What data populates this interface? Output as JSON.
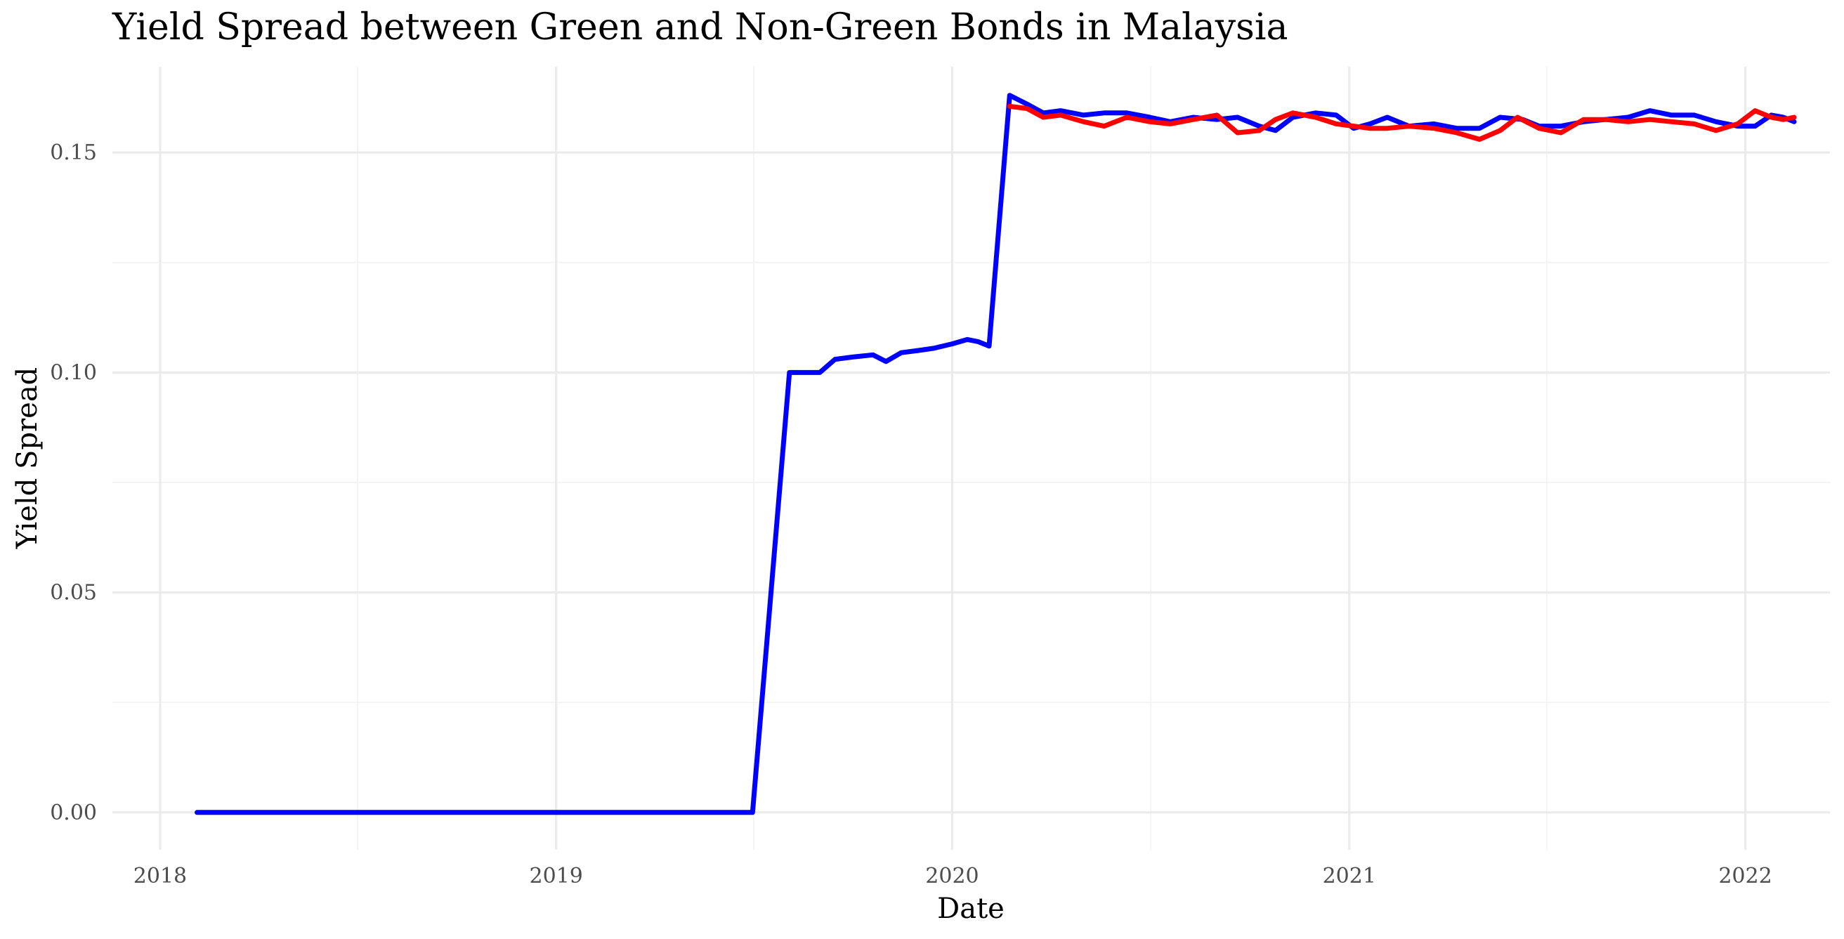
{
  "chart_data": {
    "type": "line",
    "title": "Yield Spread between Green and Non-Green Bonds in Malaysia",
    "xlabel": "Date",
    "ylabel": "Yield Spread",
    "xlim": [
      "2017-11-18",
      "2022-03-20"
    ],
    "ylim": [
      -0.0085,
      0.1695
    ],
    "x_ticks": [
      {
        "date": "2018-01-01",
        "label": "2018"
      },
      {
        "date": "2019-01-01",
        "label": "2019"
      },
      {
        "date": "2020-01-01",
        "label": "2020"
      },
      {
        "date": "2021-01-01",
        "label": "2021"
      },
      {
        "date": "2022-01-01",
        "label": "2022"
      }
    ],
    "x_minor_ticks": [
      "2018-07-02",
      "2019-07-02",
      "2020-07-02",
      "2021-07-02"
    ],
    "y_ticks": [
      {
        "value": 0.0,
        "label": "0.00"
      },
      {
        "value": 0.05,
        "label": "0.05"
      },
      {
        "value": 0.1,
        "label": "0.10"
      },
      {
        "value": 0.15,
        "label": "0.15"
      }
    ],
    "y_minor_ticks": [
      0.025,
      0.075,
      0.125
    ],
    "grid": true,
    "legend": "none",
    "series": [
      {
        "color": "#0000ff",
        "points": [
          [
            "2018-02-04",
            0.0
          ],
          [
            "2018-04-01",
            0.0
          ],
          [
            "2018-06-01",
            0.0
          ],
          [
            "2018-08-01",
            0.0
          ],
          [
            "2018-10-01",
            0.0
          ],
          [
            "2018-12-01",
            0.0
          ],
          [
            "2019-01-01",
            0.0
          ],
          [
            "2019-03-01",
            0.0
          ],
          [
            "2019-05-01",
            0.0
          ],
          [
            "2019-07-01",
            0.0
          ],
          [
            "2019-08-04",
            0.1
          ],
          [
            "2019-08-20",
            0.1
          ],
          [
            "2019-09-01",
            0.1
          ],
          [
            "2019-09-15",
            0.103
          ],
          [
            "2019-10-01",
            0.1035
          ],
          [
            "2019-10-20",
            0.104
          ],
          [
            "2019-11-01",
            0.1025
          ],
          [
            "2019-11-15",
            0.1045
          ],
          [
            "2019-12-01",
            0.105
          ],
          [
            "2019-12-15",
            0.1055
          ],
          [
            "2020-01-01",
            0.1065
          ],
          [
            "2020-01-15",
            0.1075
          ],
          [
            "2020-01-25",
            0.107
          ],
          [
            "2020-02-04",
            0.106
          ],
          [
            "2020-02-23",
            0.163
          ],
          [
            "2020-03-10",
            0.161
          ],
          [
            "2020-03-25",
            0.159
          ],
          [
            "2020-04-10",
            0.1595
          ],
          [
            "2020-05-01",
            0.1585
          ],
          [
            "2020-05-20",
            0.159
          ],
          [
            "2020-06-10",
            0.159
          ],
          [
            "2020-07-01",
            0.158
          ],
          [
            "2020-07-20",
            0.157
          ],
          [
            "2020-08-10",
            0.158
          ],
          [
            "2020-09-01",
            0.1575
          ],
          [
            "2020-09-20",
            0.158
          ],
          [
            "2020-10-10",
            0.156
          ],
          [
            "2020-10-25",
            0.155
          ],
          [
            "2020-11-10",
            0.158
          ],
          [
            "2020-12-01",
            0.159
          ],
          [
            "2020-12-20",
            0.1585
          ],
          [
            "2021-01-05",
            0.1555
          ],
          [
            "2021-01-20",
            0.1565
          ],
          [
            "2021-02-05",
            0.158
          ],
          [
            "2021-02-25",
            0.156
          ],
          [
            "2021-03-20",
            0.1565
          ],
          [
            "2021-04-10",
            0.1555
          ],
          [
            "2021-05-01",
            0.1555
          ],
          [
            "2021-05-20",
            0.158
          ],
          [
            "2021-06-10",
            0.1575
          ],
          [
            "2021-06-25",
            0.156
          ],
          [
            "2021-07-15",
            0.156
          ],
          [
            "2021-08-05",
            0.157
          ],
          [
            "2021-08-25",
            0.1575
          ],
          [
            "2021-09-15",
            0.158
          ],
          [
            "2021-10-05",
            0.1595
          ],
          [
            "2021-10-25",
            0.1585
          ],
          [
            "2021-11-15",
            0.1585
          ],
          [
            "2021-12-05",
            0.157
          ],
          [
            "2021-12-25",
            0.156
          ],
          [
            "2022-01-10",
            0.156
          ],
          [
            "2022-01-25",
            0.1585
          ],
          [
            "2022-02-05",
            0.158
          ],
          [
            "2022-02-15",
            0.157
          ]
        ]
      },
      {
        "color": "#ff0000",
        "points": [
          [
            "2020-02-23",
            0.1605
          ],
          [
            "2020-03-10",
            0.16
          ],
          [
            "2020-03-25",
            0.158
          ],
          [
            "2020-04-10",
            0.1585
          ],
          [
            "2020-05-01",
            0.157
          ],
          [
            "2020-05-20",
            0.156
          ],
          [
            "2020-06-10",
            0.158
          ],
          [
            "2020-07-01",
            0.157
          ],
          [
            "2020-07-20",
            0.1565
          ],
          [
            "2020-08-10",
            0.1575
          ],
          [
            "2020-09-01",
            0.1585
          ],
          [
            "2020-09-20",
            0.1545
          ],
          [
            "2020-10-10",
            0.155
          ],
          [
            "2020-10-25",
            0.1575
          ],
          [
            "2020-11-10",
            0.159
          ],
          [
            "2020-12-01",
            0.158
          ],
          [
            "2020-12-20",
            0.1565
          ],
          [
            "2021-01-05",
            0.156
          ],
          [
            "2021-01-20",
            0.1555
          ],
          [
            "2021-02-05",
            0.1555
          ],
          [
            "2021-02-25",
            0.156
          ],
          [
            "2021-03-20",
            0.1555
          ],
          [
            "2021-04-10",
            0.1545
          ],
          [
            "2021-05-01",
            0.153
          ],
          [
            "2021-05-20",
            0.155
          ],
          [
            "2021-06-05",
            0.158
          ],
          [
            "2021-06-25",
            0.1555
          ],
          [
            "2021-07-15",
            0.1545
          ],
          [
            "2021-08-05",
            0.1575
          ],
          [
            "2021-08-25",
            0.1575
          ],
          [
            "2021-09-15",
            0.157
          ],
          [
            "2021-10-05",
            0.1575
          ],
          [
            "2021-10-25",
            0.157
          ],
          [
            "2021-11-15",
            0.1565
          ],
          [
            "2021-12-05",
            0.155
          ],
          [
            "2021-12-25",
            0.1565
          ],
          [
            "2022-01-10",
            0.1595
          ],
          [
            "2022-01-25",
            0.158
          ],
          [
            "2022-02-05",
            0.1575
          ],
          [
            "2022-02-15",
            0.158
          ]
        ]
      }
    ]
  }
}
